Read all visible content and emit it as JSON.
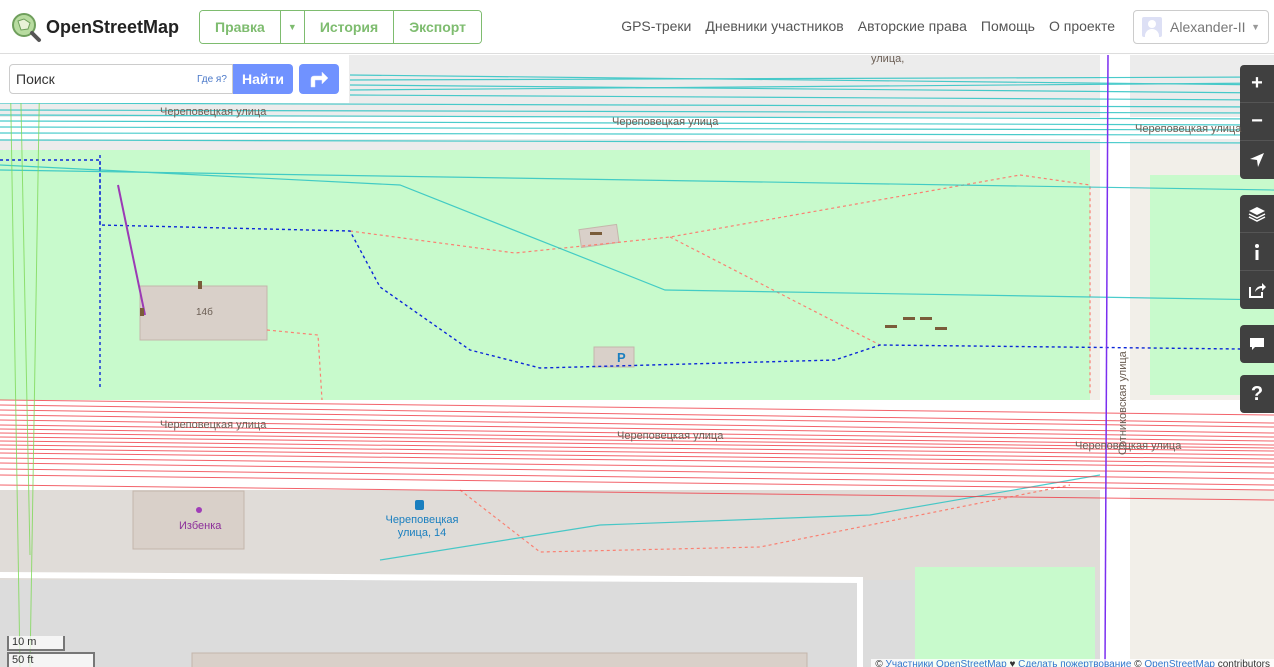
{
  "header": {
    "logo_text": "OpenStreetMap",
    "edit_buttons": [
      "Правка",
      "История",
      "Экспорт"
    ],
    "nav_links": [
      "GPS-треки",
      "Дневники участников",
      "Авторские права",
      "Помощь",
      "О проекте"
    ],
    "user_name": "Alexander-II"
  },
  "search": {
    "placeholder": "Поиск",
    "where_am_i": "Где я?",
    "submit_label": "Найти"
  },
  "controls": {
    "zoom_in": "+",
    "zoom_out": "−",
    "help": "?"
  },
  "map": {
    "street_labels": [
      "Череповецкая улица",
      "Череповецкая улица",
      "Череповецкая улица",
      "Череповецкая улица",
      "Череповецкая улица",
      "Сотниковская улица"
    ],
    "building_number": "14б",
    "poi_name": "Избенка",
    "bus_stop": "Череповецкая улица, 14",
    "top_fragment": "улица,"
  },
  "scale": {
    "metric": "10 m",
    "imperial": "50 ft"
  },
  "attribution": {
    "prefix": "©",
    "contributors": "Участники OpenStreetMap",
    "sep": "♥",
    "donate": "Сделать пожертвование",
    "copyright_prefix": "©",
    "osm": "OpenStreetMap",
    "contributors_suffix": "contributors"
  },
  "colors": {
    "brand_green": "#7ebc6f",
    "search_blue": "#7092ff",
    "park": "#c8facc",
    "road": "#ffffff",
    "building": "#d9d0c9",
    "gps_teal": "#2bc3c3",
    "gps_red": "#f03c46"
  }
}
